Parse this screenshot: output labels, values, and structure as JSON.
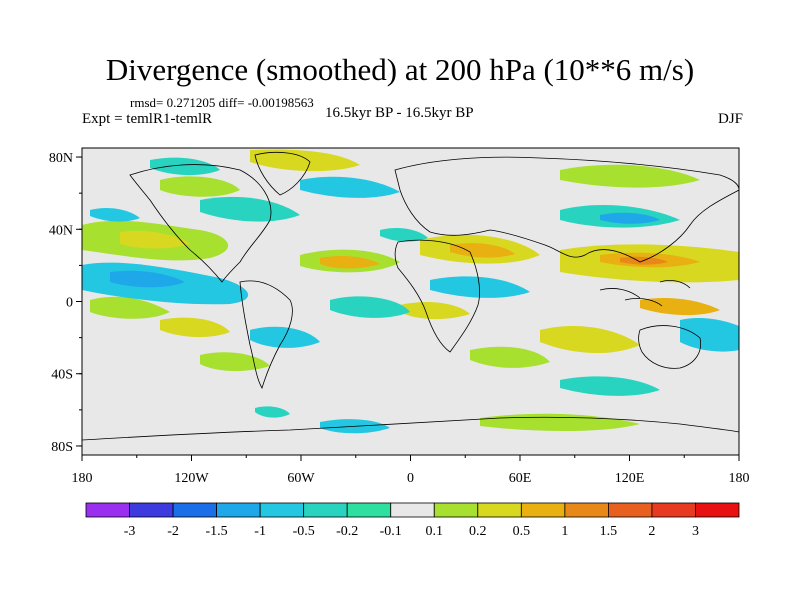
{
  "title": "Divergence (smoothed) at 200 hPa (10**6 m/s)",
  "stats": "rmsd= 0.271205 diff= -0.00198563",
  "experiment": "Expt = temlR1-temlR",
  "period": "16.5kyr BP - 16.5kyr BP",
  "season": "DJF",
  "axes": {
    "lat_labels": [
      "80N",
      "40N",
      "0",
      "40S",
      "80S"
    ],
    "lon_labels": [
      "180",
      "120W",
      "60W",
      "0",
      "60E",
      "120E",
      "180"
    ]
  },
  "colorbar": {
    "labels": [
      "-3",
      "-2",
      "-1.5",
      "-1",
      "-0.5",
      "-0.2",
      "-0.1",
      "0.1",
      "0.2",
      "0.5",
      "1",
      "1.5",
      "2",
      "3"
    ],
    "colors": [
      "#9b2ff0",
      "#3d3ae0",
      "#1a6ee8",
      "#1ea8ea",
      "#24c7e2",
      "#28d4c0",
      "#2ee0a0",
      "#e8e8e8",
      "#a8e030",
      "#d8d820",
      "#e8b010",
      "#e88818",
      "#e86020",
      "#e83a20",
      "#e81010"
    ],
    "missing_color": "#e8e8e8"
  }
}
